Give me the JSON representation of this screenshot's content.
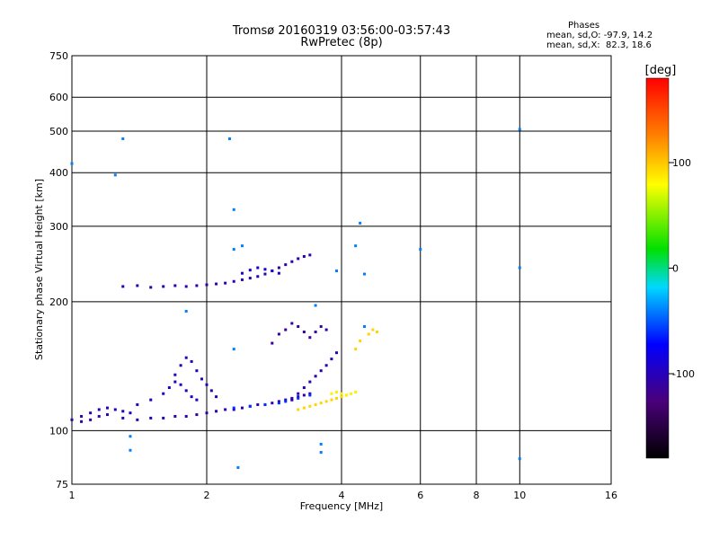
{
  "chart_data": {
    "type": "scatter",
    "title": "Tromsø 20160319 03:56:00-03:57:43",
    "subtitle": "RwPretec (8p)",
    "xlabel": "Frequency [MHz]",
    "ylabel": "Stationary phase Virtual Height [km]",
    "x_scale": "log",
    "y_scale": "log",
    "xlim": [
      1,
      16
    ],
    "ylim": [
      75,
      750
    ],
    "x_ticks": [
      1,
      2,
      4,
      6,
      8,
      10,
      16
    ],
    "y_ticks": [
      75,
      100,
      200,
      300,
      400,
      500,
      600,
      750
    ],
    "grid": true,
    "stats": {
      "header": "Phases",
      "o_line": "mean, sd,O: -97.9, 14.2",
      "x_line": "mean, sd,X:  82.3, 18.6"
    },
    "colorbar": {
      "label": "[deg]",
      "ticks": [
        100,
        0,
        -100
      ],
      "range": [
        -180,
        180
      ]
    },
    "traces": [
      {
        "x": [
          1.0,
          1.05,
          1.1,
          1.15,
          1.2,
          1.3,
          1.4,
          1.5,
          1.6,
          1.7,
          1.8,
          1.9,
          2.0,
          2.1,
          2.2,
          2.3,
          2.4,
          2.5,
          2.6,
          2.7,
          2.8,
          2.9,
          3.0,
          3.1,
          3.2,
          3.3,
          3.4
        ],
        "y": [
          106,
          105,
          106,
          108,
          109,
          107,
          106,
          107,
          107,
          108,
          108,
          109,
          110,
          111,
          112,
          112,
          113,
          114,
          115,
          115,
          116,
          117,
          118,
          119,
          120,
          121,
          122
        ],
        "phase": -105
      },
      {
        "x": [
          1.05,
          1.1,
          1.15,
          1.2,
          1.25,
          1.3,
          1.35
        ],
        "y": [
          108,
          110,
          112,
          113,
          112,
          111,
          110
        ],
        "phase": -100
      },
      {
        "x": [
          2.3,
          2.5,
          2.7,
          2.9,
          3.0,
          3.1,
          3.2,
          3.4
        ],
        "y": [
          113,
          114,
          115,
          116,
          117,
          118,
          119,
          121
        ],
        "phase": -60
      },
      {
        "x": [
          3.2,
          3.3,
          3.4,
          3.5,
          3.6,
          3.7,
          3.8,
          3.9,
          4.0,
          4.1
        ],
        "y": [
          112,
          113,
          114,
          115,
          116,
          117,
          118,
          119,
          120,
          121
        ],
        "phase": 95
      },
      {
        "x": [
          3.8,
          3.9,
          4.0,
          4.1,
          4.2,
          4.3
        ],
        "y": [
          122,
          123,
          122,
          121,
          122,
          123
        ],
        "phase": 85
      },
      {
        "x": [
          3.1,
          3.2,
          3.3,
          3.4,
          3.5,
          3.6,
          3.7,
          3.8,
          3.9
        ],
        "y": [
          118,
          122,
          126,
          130,
          134,
          138,
          142,
          147,
          152
        ],
        "phase": -105
      },
      {
        "x": [
          1.7,
          1.75,
          1.8,
          1.85,
          1.9,
          1.95,
          2.0,
          2.05,
          2.1
        ],
        "y": [
          135,
          142,
          148,
          145,
          138,
          132,
          128,
          124,
          120
        ],
        "phase": -100
      },
      {
        "x": [
          1.4,
          1.5,
          1.6,
          1.65,
          1.7,
          1.75,
          1.8,
          1.85,
          1.9
        ],
        "y": [
          115,
          118,
          122,
          126,
          130,
          128,
          124,
          120,
          118
        ],
        "phase": -95
      },
      {
        "x": [
          2.8,
          2.9,
          3.0,
          3.1,
          3.2,
          3.3
        ],
        "y": [
          160,
          168,
          172,
          178,
          175,
          170
        ],
        "phase": -110
      },
      {
        "x": [
          3.4,
          3.5,
          3.6,
          3.7
        ],
        "y": [
          165,
          170,
          175,
          172
        ],
        "phase": -110
      },
      {
        "x": [
          4.3,
          4.4,
          4.6,
          4.7,
          4.8
        ],
        "y": [
          155,
          162,
          168,
          172,
          170
        ],
        "phase": 95
      },
      {
        "x": [
          1.3,
          1.4,
          1.5,
          1.6,
          1.7
        ],
        "y": [
          217,
          218,
          216,
          217,
          218
        ],
        "phase": -105
      },
      {
        "x": [
          1.8,
          1.9,
          2.0,
          2.1,
          2.2,
          2.3,
          2.4,
          2.5,
          2.6,
          2.7,
          2.8,
          2.9,
          3.0,
          3.1,
          3.2,
          3.3,
          3.4
        ],
        "y": [
          217,
          218,
          219,
          220,
          221,
          223,
          225,
          227,
          229,
          232,
          236,
          240,
          244,
          248,
          252,
          255,
          257
        ],
        "phase": -105
      },
      {
        "x": [
          2.4,
          2.5,
          2.6,
          2.7,
          2.8,
          2.9
        ],
        "y": [
          233,
          237,
          240,
          238,
          236,
          233
        ],
        "phase": -90
      },
      {
        "x": [
          1.0,
          1.25,
          1.3,
          1.35,
          2.25,
          2.3,
          2.3,
          2.35,
          2.4,
          3.6,
          3.9,
          4.3,
          4.4,
          4.5,
          4.5,
          6.0,
          10.0,
          10.0,
          10.0,
          2.3,
          1.8,
          3.5,
          3.6,
          1.35
        ],
        "y": [
          420,
          395,
          480,
          97,
          480,
          328,
          265,
          82,
          270,
          93,
          236,
          270,
          305,
          232,
          175,
          265,
          505,
          240,
          86,
          155,
          190,
          196,
          89,
          90
        ],
        "phase": -40
      }
    ]
  }
}
